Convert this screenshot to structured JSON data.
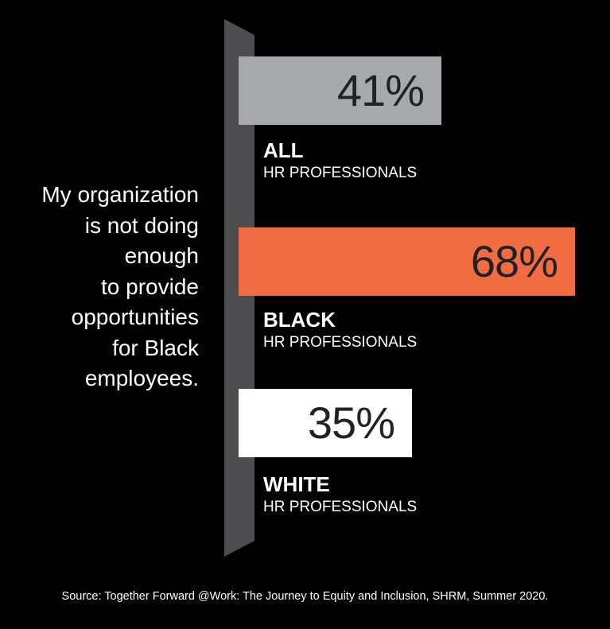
{
  "question": {
    "text": "My organization\nis not doing\nenough\nto provide\nopportunities\nfor Black\nemployees."
  },
  "chart_data": {
    "type": "bar",
    "orientation": "horizontal",
    "categories": [
      "ALL",
      "BLACK",
      "WHITE"
    ],
    "category_sublabels": [
      "HR PROFESSIONALS",
      "HR PROFESSIONALS",
      "HR PROFESSIONALS"
    ],
    "values": [
      41,
      68,
      35
    ],
    "value_labels": [
      "41%",
      "68%",
      "35%"
    ],
    "bar_colors": [
      "#a7a9ac",
      "#f26c43",
      "#ffffff"
    ],
    "xlim": [
      0,
      68
    ],
    "grid": false,
    "legend": "none"
  },
  "source": {
    "text": "Source: Together Forward @Work: The Journey to Equity and Inclusion, SHRM, Summer 2020."
  },
  "colors": {
    "background": "#000000",
    "axis_post": "#4d4d4f",
    "value_text": "#222222",
    "label_text": "#ffffff"
  }
}
